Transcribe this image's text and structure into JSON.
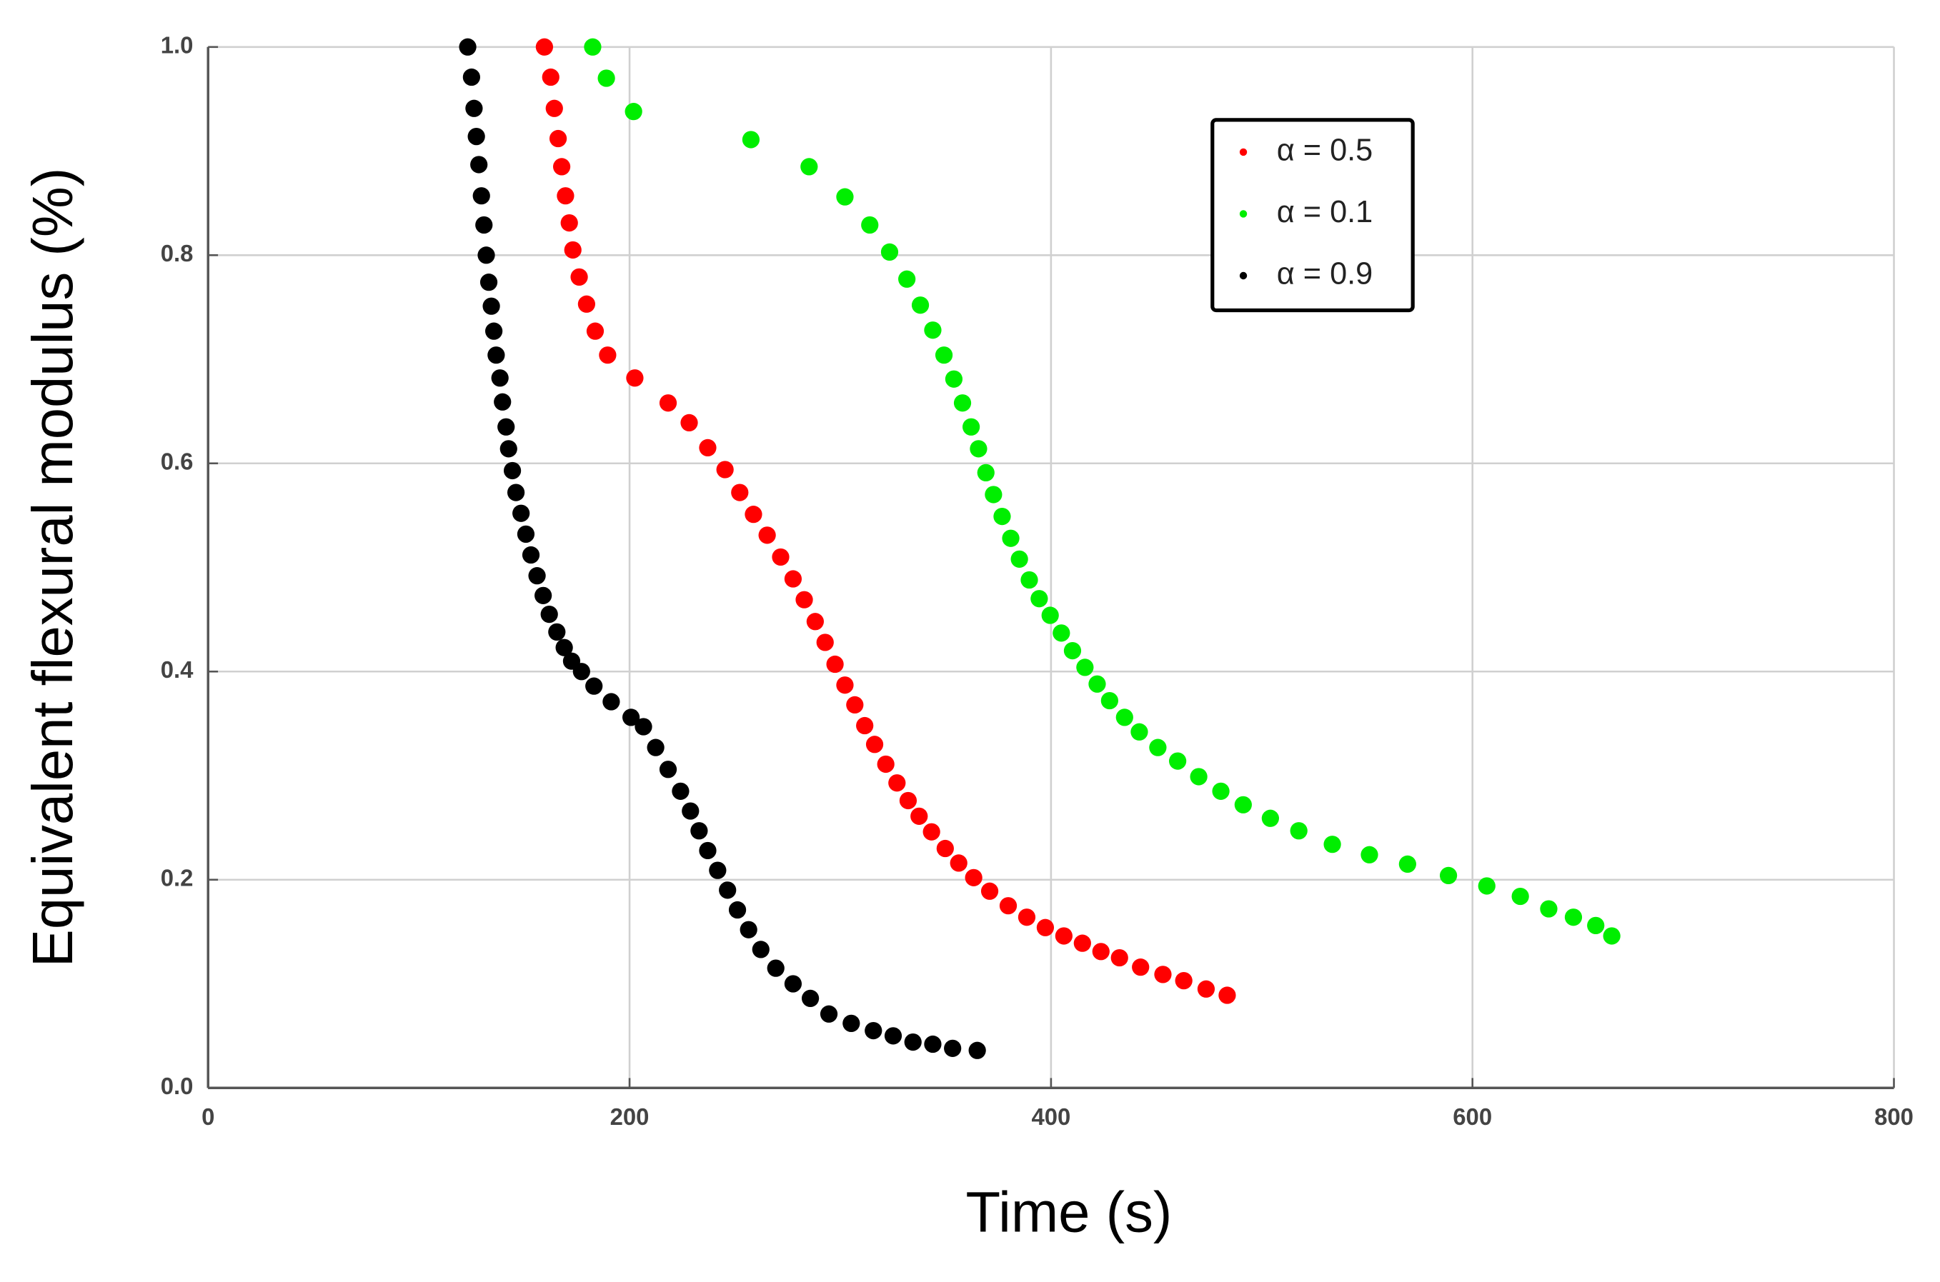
{
  "chart_data": {
    "type": "scatter",
    "x_label": "Time (s)",
    "y_label": "Equivalent flexural modulus (%)",
    "xlim": [
      0,
      800
    ],
    "xticks": [
      0,
      200,
      400,
      600,
      800
    ],
    "ylim": [
      0,
      1.0
    ],
    "yticks": [
      {
        "value": 0,
        "label": "0.0"
      },
      0.2,
      0.4,
      0.6,
      0.8,
      {
        "value": 1.0,
        "label": "1.0"
      }
    ],
    "grid": true,
    "legend": "upper right",
    "series": [
      {
        "name": "α = 0.5",
        "color": "#ff0000",
        "x": [
          159.6,
          162.6,
          164.3,
          166.1,
          167.8,
          169.6,
          171.4,
          173.1,
          176.1,
          179.6,
          183.7,
          189.6,
          202.5,
          218.3,
          228.3,
          237.1,
          245.3,
          252.3,
          258.8,
          265.3,
          271.7,
          277.6,
          282.9,
          288.1,
          292.8,
          297.5,
          302.2,
          306.9,
          311.6,
          316.3,
          321.6,
          326.9,
          332.2,
          337.4,
          343.3,
          349.8,
          356.2,
          363.3,
          370.9,
          379.7,
          388.5,
          397.3,
          406.1,
          414.9,
          423.7,
          432.5,
          442.5,
          453.1,
          463,
          473.6,
          483.6
        ],
        "values": [
          1.0,
          0.971,
          0.941,
          0.912,
          0.885,
          0.857,
          0.831,
          0.805,
          0.779,
          0.753,
          0.727,
          0.704,
          0.682,
          0.658,
          0.639,
          0.615,
          0.594,
          0.572,
          0.551,
          0.531,
          0.51,
          0.489,
          0.469,
          0.448,
          0.428,
          0.407,
          0.387,
          0.368,
          0.348,
          0.33,
          0.311,
          0.293,
          0.276,
          0.261,
          0.246,
          0.23,
          0.216,
          0.202,
          0.189,
          0.175,
          0.164,
          0.154,
          0.146,
          0.139,
          0.131,
          0.125,
          0.116,
          0.109,
          0.103,
          0.095,
          0.089
        ]
      },
      {
        "name": "α = 0.1",
        "color": "#00ee00",
        "x": [
          182.5,
          189,
          201.9,
          257.6,
          285.2,
          302.2,
          314,
          323.4,
          331.6,
          338,
          343.9,
          349.2,
          353.9,
          358,
          362.1,
          365.6,
          369.1,
          372.7,
          376.8,
          380.9,
          385,
          389.7,
          394.4,
          399.6,
          404.9,
          410.2,
          416.1,
          421.9,
          427.8,
          434.9,
          441.9,
          450.7,
          460.1,
          470.1,
          480.6,
          491.2,
          504.1,
          517.6,
          533.5,
          551.1,
          569.2,
          588.6,
          606.8,
          622.7,
          636.2,
          647.9,
          658.5,
          666.1
        ],
        "values": [
          1.0,
          0.97,
          0.938,
          0.911,
          0.885,
          0.856,
          0.829,
          0.803,
          0.777,
          0.752,
          0.728,
          0.704,
          0.681,
          0.658,
          0.635,
          0.614,
          0.591,
          0.57,
          0.549,
          0.528,
          0.508,
          0.488,
          0.47,
          0.454,
          0.437,
          0.42,
          0.404,
          0.388,
          0.372,
          0.356,
          0.342,
          0.327,
          0.314,
          0.299,
          0.285,
          0.272,
          0.259,
          0.247,
          0.234,
          0.224,
          0.215,
          0.204,
          0.194,
          0.184,
          0.172,
          0.164,
          0.156,
          0.146
        ]
      },
      {
        "name": "α = 0.9",
        "color": "#000000",
        "x": [
          123.2,
          125,
          126.2,
          127.3,
          128.5,
          129.7,
          130.9,
          132,
          133.2,
          134.4,
          135.6,
          136.7,
          138.5,
          139.7,
          141.4,
          142.6,
          144.4,
          146.1,
          148.5,
          150.8,
          153.2,
          156.1,
          159,
          161.9,
          165.5,
          169,
          172.5,
          177.2,
          183.1,
          191.3,
          200.7,
          206.6,
          212.4,
          218.3,
          224.2,
          228.9,
          233,
          237.1,
          241.8,
          246.5,
          251.2,
          256.5,
          262.3,
          269.4,
          277.6,
          285.8,
          294.6,
          305.2,
          315.7,
          325.1,
          334.5,
          343.9,
          353.3,
          365
        ],
        "values": [
          1.0,
          0.971,
          0.941,
          0.914,
          0.887,
          0.857,
          0.829,
          0.8,
          0.774,
          0.751,
          0.727,
          0.704,
          0.682,
          0.659,
          0.635,
          0.614,
          0.593,
          0.572,
          0.552,
          0.532,
          0.512,
          0.492,
          0.473,
          0.455,
          0.438,
          0.423,
          0.41,
          0.4,
          0.386,
          0.371,
          0.356,
          0.347,
          0.327,
          0.306,
          0.285,
          0.266,
          0.247,
          0.228,
          0.209,
          0.19,
          0.171,
          0.152,
          0.133,
          0.115,
          0.1,
          0.086,
          0.071,
          0.062,
          0.055,
          0.05,
          0.044,
          0.042,
          0.038,
          0.036
        ]
      }
    ]
  }
}
